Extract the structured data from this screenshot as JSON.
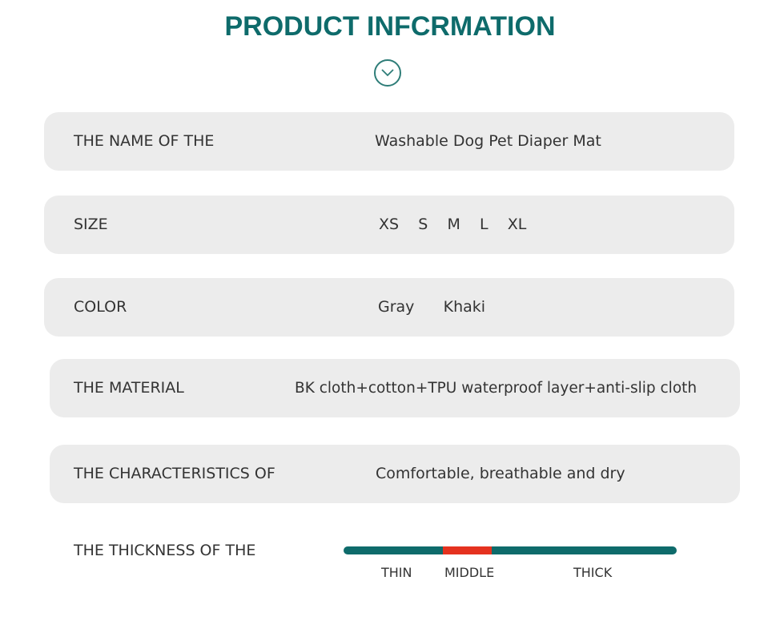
{
  "title": "PRODUCT INFCRMATION",
  "icon": "chevron-down-circle-icon",
  "rows": [
    {
      "label": "THE NAME OF THE",
      "value": "Washable Dog Pet Diaper Mat"
    },
    {
      "label": "SIZE",
      "value": "XS    S    M    L    XL"
    },
    {
      "label": "COLOR",
      "value": "Gray      Khaki"
    },
    {
      "label": "THE MATERIAL",
      "value": "BK cloth+cotton+TPU waterproof layer+anti-slip cloth"
    },
    {
      "label": "THE CHARACTERISTICS OF",
      "value": "Comfortable, breathable and dry"
    }
  ],
  "thickness": {
    "label": "THE THICKNESS OF THE",
    "levels": [
      "THIN",
      "MIDDLE",
      "THICK"
    ],
    "selected": "MIDDLE",
    "colors": {
      "bar": "#0e6b6b",
      "selected": "#e5321f"
    }
  }
}
